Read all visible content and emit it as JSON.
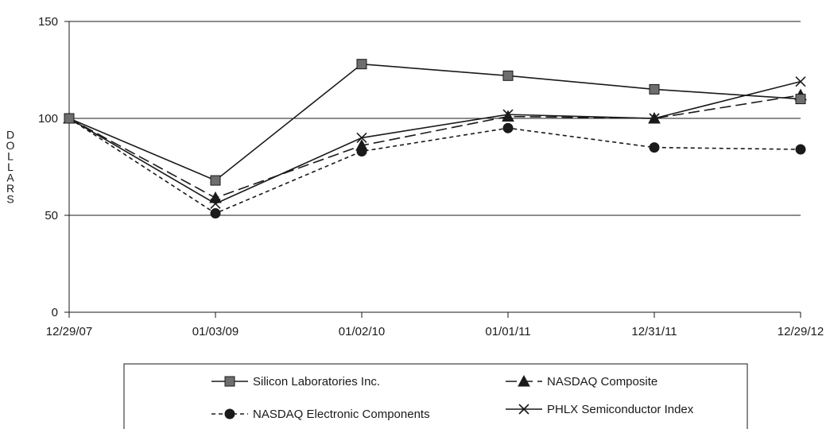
{
  "chart_data": {
    "type": "line",
    "title": "",
    "xlabel": "",
    "ylabel": "DOLLARS",
    "categories": [
      "12/29/07",
      "01/03/09",
      "01/02/10",
      "01/01/11",
      "12/31/11",
      "12/29/12"
    ],
    "yticks": [
      0,
      50,
      100,
      150
    ],
    "ylim": [
      0,
      150
    ],
    "grid": "horizontal",
    "legend_position": "bottom",
    "series": [
      {
        "name": "Silicon Laboratories Inc.",
        "values": [
          100,
          68,
          128,
          122,
          115,
          110
        ],
        "marker": "square",
        "line_style": "solid",
        "color": "#1a1a1a",
        "marker_fill": "#6e6e6e"
      },
      {
        "name": "NASDAQ Composite",
        "values": [
          100,
          59,
          86,
          101,
          100,
          112
        ],
        "marker": "triangle",
        "line_style": "long-dash",
        "color": "#1a1a1a",
        "marker_fill": "#1a1a1a"
      },
      {
        "name": "NASDAQ Electronic Components",
        "values": [
          100,
          51,
          83,
          95,
          85,
          84
        ],
        "marker": "circle",
        "line_style": "short-dash",
        "color": "#1a1a1a",
        "marker_fill": "#1a1a1a"
      },
      {
        "name": "PHLX Semiconductor Index",
        "values": [
          100,
          56,
          90,
          102,
          100,
          119
        ],
        "marker": "x",
        "line_style": "solid",
        "color": "#1a1a1a",
        "marker_fill": "#1a1a1a"
      }
    ]
  }
}
